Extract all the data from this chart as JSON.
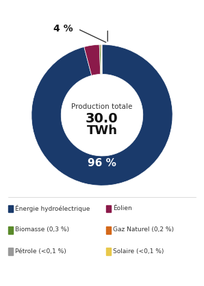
{
  "slices": [
    {
      "label": "Énergie hydroélectrique",
      "value": 96.0,
      "color": "#1a3a6b"
    },
    {
      "label": "Éolien",
      "value": 3.5,
      "color": "#8b1a4a"
    },
    {
      "label": "Biomasse (0,3 %)",
      "value": 0.3,
      "color": "#5a8a2a"
    },
    {
      "label": "Gaz Naturel (0,2 %)",
      "value": 0.2,
      "color": "#d4681a"
    },
    {
      "label": "Pétrole (<0,1 %)",
      "value": 0.05,
      "color": "#999999"
    },
    {
      "label": "Solaire (<0,1 %)",
      "value": 0.05,
      "color": "#e8c84a"
    }
  ],
  "center_text_line1": "Production totale",
  "center_text_line2": "30.0",
  "center_text_line3": "TWh",
  "pct_label_96": "96 %",
  "pct_label_4": "4 %",
  "legend_items": [
    {
      "label": "Énergie hydroélectrique",
      "color": "#1a3a6b"
    },
    {
      "label": "Éolien",
      "color": "#8b1a4a"
    },
    {
      "label": "Biomasse (0,3 %)",
      "color": "#5a8a2a"
    },
    {
      "label": "Gaz Naturel (0,2 %)",
      "color": "#d4681a"
    },
    {
      "label": "Pétrole (<0,1 %)",
      "color": "#999999"
    },
    {
      "label": "Solaire (<0,1 %)",
      "color": "#e8c84a"
    }
  ],
  "donut_width": 0.42,
  "background_color": "#ffffff"
}
